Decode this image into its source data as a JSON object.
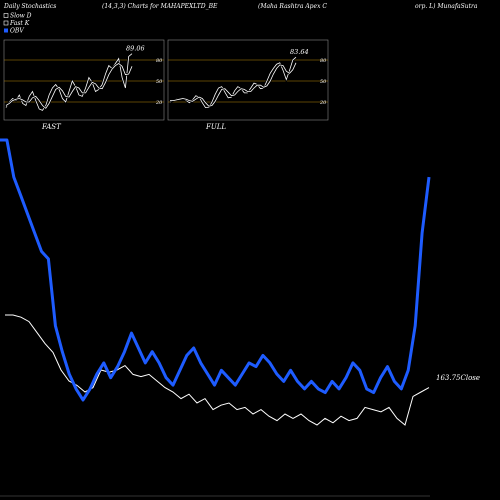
{
  "header": {
    "left": "Daily Stochastics",
    "params": "(14,3,3) Charts for MAHAPEXLTD_BE",
    "company": "(Maha Rashtra Apex C",
    "right": "orp. L) MunafaSutra"
  },
  "legend": [
    {
      "label": "Slow  D",
      "color": "#ffffff"
    },
    {
      "label": "Fast K",
      "color": "#ffffff"
    },
    {
      "label": "OBV",
      "color": "#1e5cff"
    }
  ],
  "colors": {
    "background": "#000000",
    "obv": "#1e5cff",
    "close": "#ffffff",
    "level": "#b8860b"
  },
  "chart_data": [
    {
      "type": "line",
      "title": "FAST",
      "ylim": [
        0,
        100
      ],
      "levels": [
        20,
        50,
        80
      ],
      "level_labels": [
        "20",
        "50",
        "80"
      ],
      "last_value_label": "89.06",
      "series": [
        {
          "name": "Fast K",
          "values": [
            12,
            20,
            25,
            22,
            30,
            18,
            15,
            28,
            35,
            22,
            10,
            8,
            15,
            30,
            40,
            45,
            38,
            25,
            20,
            35,
            50,
            42,
            30,
            28,
            40,
            55,
            48,
            35,
            38,
            45,
            60,
            72,
            68,
            75,
            82,
            55,
            40,
            85,
            89
          ]
        },
        {
          "name": "Slow D",
          "values": [
            15,
            18,
            22,
            24,
            25,
            23,
            20,
            20,
            26,
            28,
            22,
            15,
            11,
            18,
            28,
            38,
            41,
            36,
            28,
            27,
            35,
            42,
            40,
            33,
            33,
            41,
            48,
            46,
            40,
            39,
            48,
            59,
            67,
            72,
            75,
            71,
            59,
            60,
            71
          ]
        }
      ]
    },
    {
      "type": "line",
      "title": "FULL",
      "ylim": [
        0,
        100
      ],
      "levels": [
        20,
        50,
        80
      ],
      "level_labels": [
        "20",
        "50",
        "80"
      ],
      "last_value_label": "83.64",
      "series": [
        {
          "name": "Full K",
          "values": [
            20,
            22,
            24,
            24,
            26,
            22,
            19,
            23,
            29,
            27,
            19,
            12,
            12,
            20,
            31,
            40,
            42,
            34,
            26,
            27,
            36,
            42,
            39,
            33,
            33,
            40,
            47,
            45,
            39,
            40,
            50,
            61,
            68,
            74,
            76,
            65,
            52,
            65,
            80,
            84
          ]
        },
        {
          "name": "Full D",
          "values": [
            22,
            22,
            23,
            24,
            25,
            24,
            22,
            21,
            24,
            27,
            25,
            19,
            14,
            15,
            21,
            30,
            38,
            39,
            34,
            29,
            30,
            35,
            39,
            38,
            35,
            35,
            40,
            44,
            44,
            41,
            43,
            50,
            60,
            68,
            73,
            72,
            64,
            61,
            66,
            76
          ]
        }
      ]
    },
    {
      "type": "line",
      "title": "",
      "last_value_label": "163.75",
      "last_value_suffix": "Close",
      "series": [
        {
          "name": "OBV",
          "values": [
            70,
            70,
            60,
            55,
            50,
            45,
            40,
            38,
            20,
            13,
            7,
            3,
            0,
            3,
            7,
            10,
            6,
            9,
            13,
            18,
            14,
            10,
            13,
            10,
            6,
            4,
            8,
            12,
            14,
            10,
            7,
            4,
            8,
            6,
            4,
            7,
            10,
            9,
            12,
            10,
            7,
            5,
            8,
            5,
            3,
            5,
            3,
            2,
            5,
            3,
            6,
            10,
            8,
            3,
            2,
            6,
            9,
            5,
            3,
            8,
            20,
            45,
            60
          ]
        },
        {
          "name": "Close",
          "values": [
            55,
            55,
            54,
            52,
            47,
            42,
            38,
            30,
            25,
            23,
            20,
            22,
            30,
            29,
            30,
            32,
            28,
            27,
            28,
            25,
            22,
            20,
            17,
            19,
            15,
            17,
            12,
            14,
            15,
            12,
            13,
            10,
            12,
            9,
            7,
            10,
            8,
            10,
            7,
            5,
            8,
            6,
            9,
            7,
            8,
            13,
            12,
            11,
            13,
            8,
            5,
            18,
            20,
            22
          ]
        }
      ]
    }
  ]
}
